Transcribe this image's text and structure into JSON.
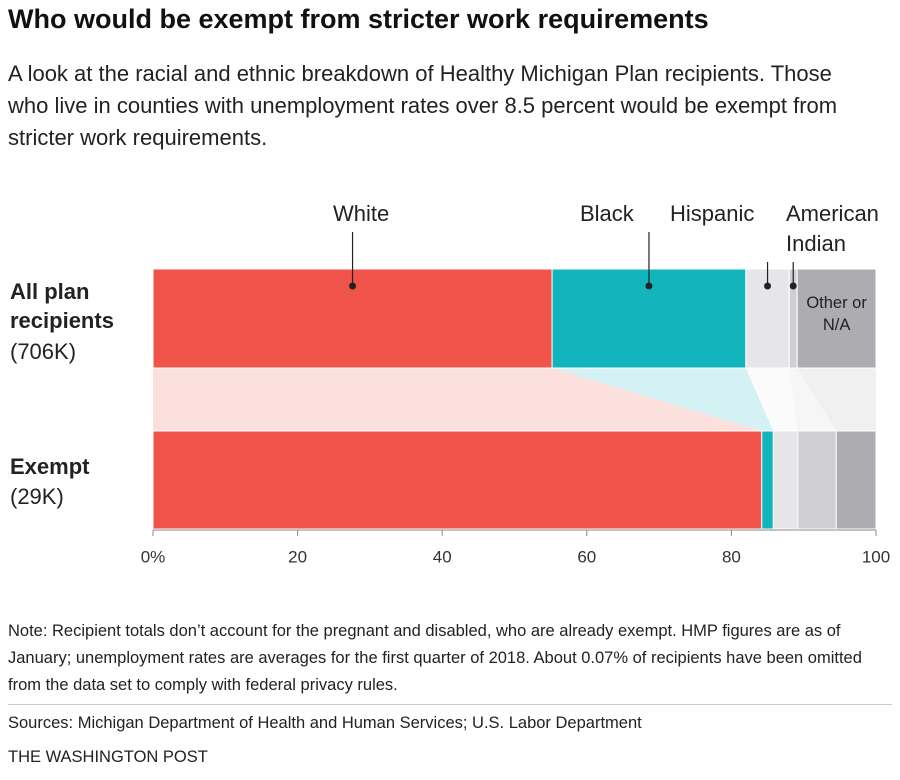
{
  "chart_data": {
    "type": "stacked-bar-100",
    "title": "Who would be exempt from stricter work requirements",
    "subtitle": "A look at the racial and ethnic breakdown of Healthy Michigan Plan recipients. Those who live in counties with unemployment rates over 8.5 percent would be exempt from stricter work requirements.",
    "categories": [
      "All plan recipients",
      "Exempt"
    ],
    "category_totals": [
      "(706K)",
      "(29K)"
    ],
    "series": [
      {
        "name": "White",
        "color": "#f0534a",
        "values": [
          55.2,
          84.2
        ]
      },
      {
        "name": "Black",
        "color": "#12b5bc",
        "values": [
          26.8,
          1.6
        ]
      },
      {
        "name": "Hispanic",
        "color": "#e6e6e8",
        "values": [
          6.0,
          3.4
        ]
      },
      {
        "name": "American Indian",
        "color": "#cfcfd3",
        "values": [
          1.1,
          5.3
        ]
      },
      {
        "name": "Other or N/A",
        "color": "#adadb1",
        "values": [
          10.9,
          5.5
        ]
      }
    ],
    "xlim": [
      0,
      100
    ],
    "xticks": [
      {
        "value": 0,
        "label": "0%"
      },
      20,
      40,
      60,
      80,
      100
    ],
    "note": "Note: Recipient totals don’t account for the pregnant and disabled, who are already exempt. HMP figures are as of January; unemployment rates are averages for the first quarter of 2018. About 0.07% of recipients have been omitted from the data set to comply with federal privacy rules.",
    "source": "Sources: Michigan Department of Health and Human Services; U.S. Labor Department",
    "credit": "THE WASHINGTON POST"
  }
}
